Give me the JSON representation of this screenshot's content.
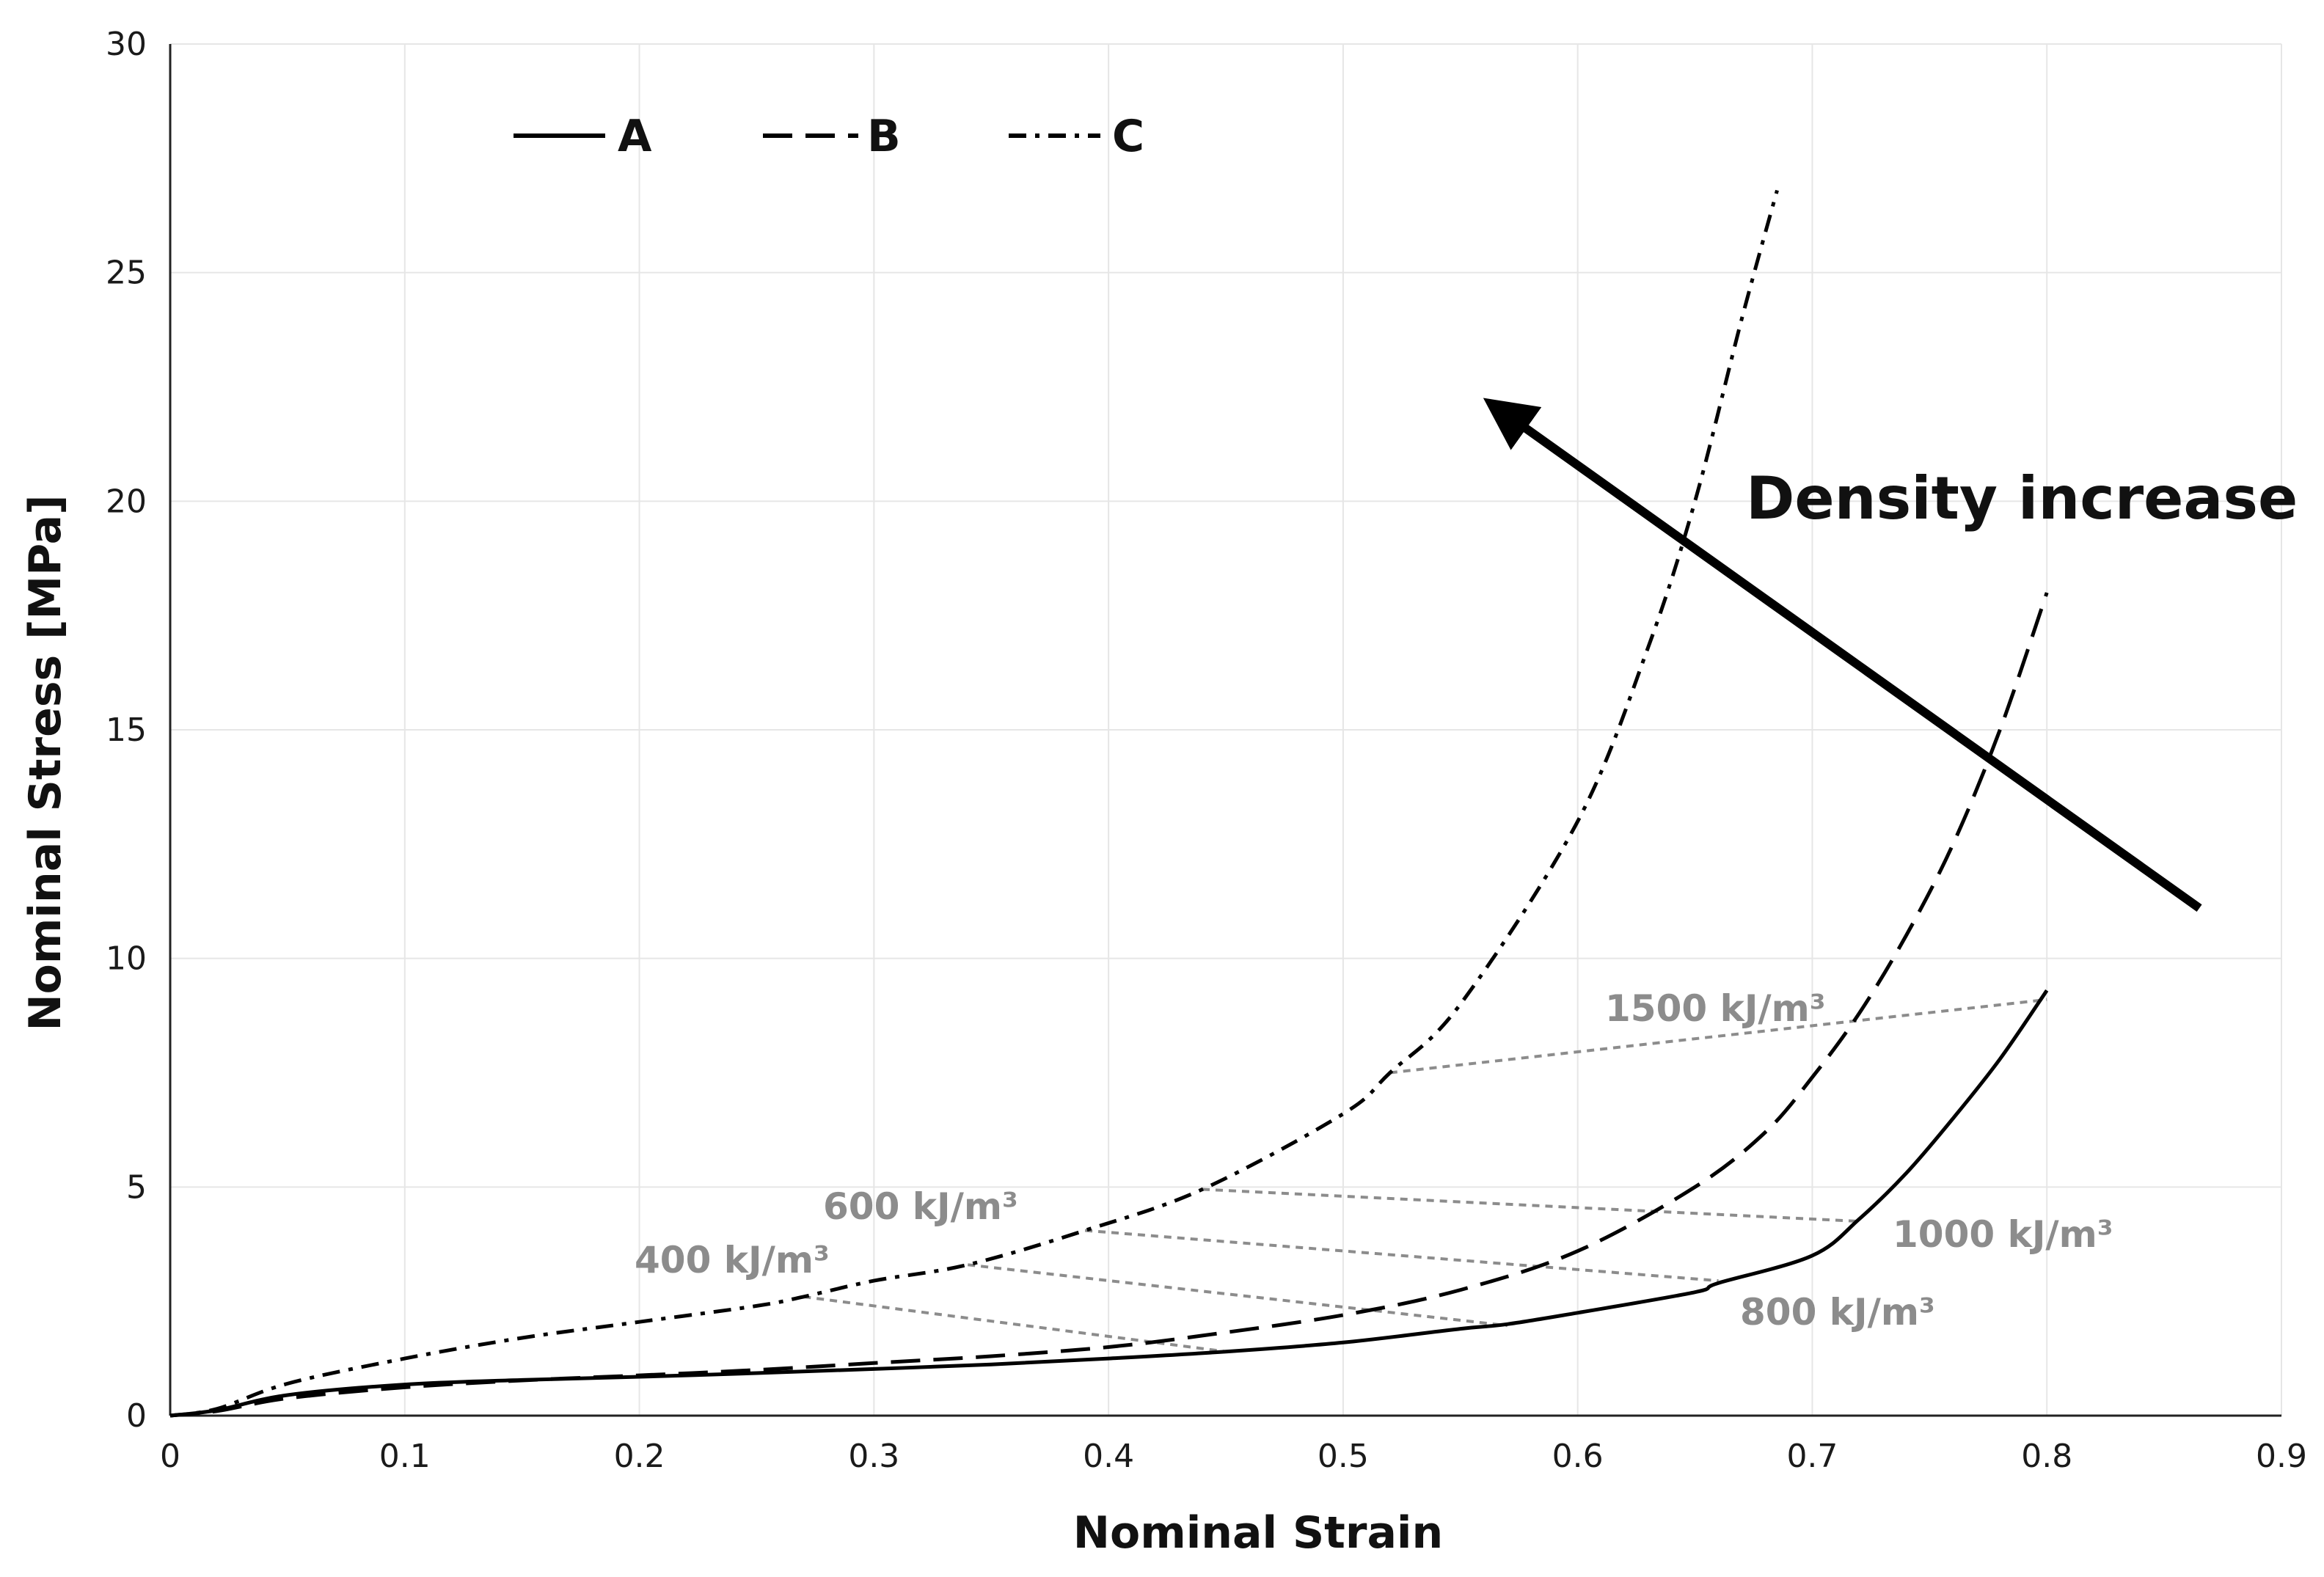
{
  "chart_data": {
    "type": "line",
    "title": "",
    "xlabel": "Nominal Strain",
    "ylabel": "Nominal Stress [MPa]",
    "xlim": [
      0,
      0.9
    ],
    "ylim": [
      0,
      30
    ],
    "x_ticks": [
      0,
      0.1,
      0.2,
      0.3,
      0.4,
      0.5,
      0.6,
      0.7,
      0.8,
      0.9
    ],
    "x_tick_labels": [
      "0",
      "0.1",
      "0.2",
      "0.3",
      "0.4",
      "0.5",
      "0.6",
      "0.7",
      "0.8",
      "0.9"
    ],
    "y_ticks": [
      0,
      5,
      10,
      15,
      20,
      25,
      30
    ],
    "y_tick_labels": [
      "0",
      "5",
      "10",
      "15",
      "20",
      "25",
      "30"
    ],
    "grid": true,
    "legend_position": "top-left",
    "series": [
      {
        "name": "A",
        "line_style": "solid",
        "x": [
          0,
          0.02,
          0.05,
          0.1,
          0.15,
          0.2,
          0.25,
          0.3,
          0.35,
          0.4,
          0.45,
          0.5,
          0.55,
          0.57,
          0.6,
          0.65,
          0.66,
          0.7,
          0.72,
          0.74,
          0.76,
          0.78,
          0.8
        ],
        "y": [
          0,
          0.12,
          0.45,
          0.68,
          0.78,
          0.85,
          0.93,
          1.02,
          1.12,
          1.25,
          1.4,
          1.6,
          1.9,
          2.0,
          2.25,
          2.7,
          2.9,
          3.5,
          4.3,
          5.3,
          6.5,
          7.8,
          9.3
        ]
      },
      {
        "name": "B",
        "line_style": "dashed",
        "x": [
          0,
          0.02,
          0.05,
          0.1,
          0.15,
          0.2,
          0.25,
          0.3,
          0.35,
          0.4,
          0.44,
          0.5,
          0.55,
          0.6,
          0.65,
          0.68,
          0.7,
          0.72,
          0.74,
          0.76,
          0.78,
          0.8
        ],
        "y": [
          0,
          0.1,
          0.38,
          0.62,
          0.77,
          0.88,
          1.0,
          1.15,
          1.3,
          1.5,
          1.75,
          2.2,
          2.75,
          3.6,
          5.0,
          6.2,
          7.4,
          8.8,
          10.5,
          12.5,
          15.0,
          18.0
        ]
      },
      {
        "name": "C",
        "line_style": "dash-dot",
        "x": [
          0,
          0.02,
          0.05,
          0.1,
          0.15,
          0.2,
          0.25,
          0.27,
          0.3,
          0.34,
          0.39,
          0.44,
          0.5,
          0.52,
          0.55,
          0.6,
          0.63,
          0.65,
          0.67,
          0.685
        ],
        "y": [
          0,
          0.15,
          0.7,
          1.25,
          1.7,
          2.05,
          2.4,
          2.6,
          2.95,
          3.3,
          4.05,
          4.95,
          6.6,
          7.5,
          9.0,
          13.0,
          16.8,
          20.0,
          24.0,
          26.8
        ]
      }
    ],
    "iso_energy_lines": [
      {
        "label": "400 kJ/m³",
        "x": [
          0.27,
          0.45
        ],
        "y": [
          2.6,
          1.4
        ]
      },
      {
        "label": "600 kJ/m³",
        "x": [
          0.34,
          0.57
        ],
        "y": [
          3.3,
          1.97
        ]
      },
      {
        "label": "800 kJ/m³",
        "x": [
          0.39,
          0.66
        ],
        "y": [
          4.05,
          2.95
        ]
      },
      {
        "label": "1000 kJ/m³",
        "x": [
          0.44,
          0.72
        ],
        "y": [
          4.95,
          4.25
        ]
      },
      {
        "label": "1500 kJ/m³",
        "x": [
          0.52,
          0.8
        ],
        "y": [
          7.5,
          9.1
        ]
      }
    ],
    "annotation": {
      "text": "Density increase",
      "arrow_from": [
        0.865,
        11.1
      ],
      "arrow_to": [
        0.575,
        21.7
      ]
    }
  }
}
